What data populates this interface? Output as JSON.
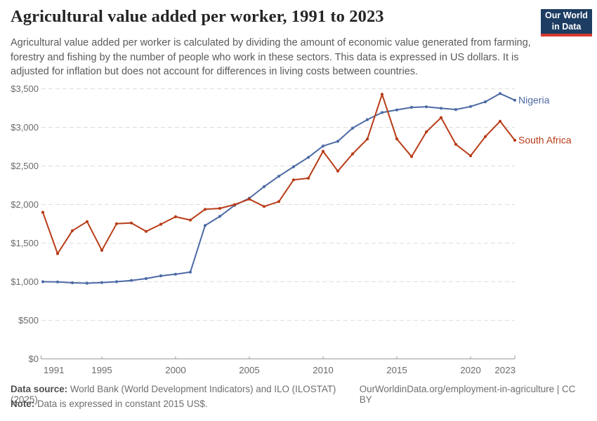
{
  "header": {
    "title": "Agricultural value added per worker, 1991 to 2023",
    "subtitle": "Agricultural value added per worker is calculated by dividing the amount of economic value generated from farming, forestry and fishing by the number of people who work in these sectors. This data is expressed in US dollars. It is adjusted for inflation but does not account for differences in living costs between countries.",
    "logo": {
      "line1": "Our World",
      "line2": "in Data"
    }
  },
  "chart_data": {
    "type": "line",
    "title": "Agricultural value added per worker, 1991 to 2023",
    "ylabel": "",
    "xlabel": "",
    "unit": "constant 2015 US$",
    "grid": "horizontal-dashed",
    "legend": "line-end-labels",
    "ylim": [
      0,
      3500
    ],
    "years": [
      1991,
      1992,
      1993,
      1994,
      1995,
      1996,
      1997,
      1998,
      1999,
      2000,
      2001,
      2002,
      2003,
      2004,
      2005,
      2006,
      2007,
      2008,
      2009,
      2010,
      2011,
      2012,
      2013,
      2014,
      2015,
      2016,
      2017,
      2018,
      2019,
      2020,
      2021,
      2022,
      2023
    ],
    "series": [
      {
        "name": "Nigeria",
        "color": "#4c6aa5",
        "values": [
          1000,
          997,
          986,
          981,
          989,
          1000,
          1016,
          1041,
          1076,
          1097,
          1125,
          1728,
          1846,
          1990,
          2082,
          2232,
          2366,
          2490,
          2611,
          2758,
          2819,
          2990,
          3100,
          3192,
          3226,
          3259,
          3266,
          3247,
          3231,
          3270,
          3331,
          3438,
          3352
        ]
      },
      {
        "name": "South Africa",
        "color": "#b83c18",
        "values": [
          1899,
          1364,
          1661,
          1779,
          1406,
          1752,
          1761,
          1652,
          1745,
          1842,
          1799,
          1938,
          1950,
          1999,
          2070,
          1975,
          2038,
          2320,
          2341,
          2690,
          2434,
          2655,
          2848,
          3428,
          2850,
          2621,
          2941,
          3126,
          2780,
          2632,
          2880,
          3079,
          2833
        ]
      }
    ],
    "yticks": {
      "values": [
        0,
        500,
        1000,
        1500,
        2000,
        2500,
        3000,
        3500
      ],
      "labels": [
        "$0",
        "$500",
        "$1,000",
        "$1,500",
        "$2,000",
        "$2,500",
        "$3,000",
        "$3,500"
      ]
    },
    "xticks": [
      1991,
      1995,
      2000,
      2005,
      2010,
      2015,
      2020,
      2023
    ],
    "colors": {
      "axis": "#9b9b9b",
      "grid": "#dddddd",
      "tick_label": "#6b6b6b"
    }
  },
  "footer": {
    "data_source_label": "Data source:",
    "data_source_text": " World Bank (World Development Indicators) and ILO (ILOSTAT) (2025)",
    "cc": "OurWorldinData.org/employment-in-agriculture | CC BY",
    "note_label": "Note:",
    "note_text": " Data is expressed in constant 2015 US$."
  }
}
